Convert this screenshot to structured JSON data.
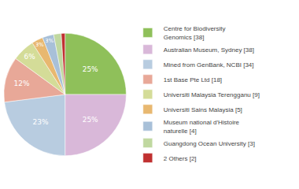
{
  "chart_data": {
    "type": "pie",
    "categories": [
      "Centre for Biodiversity\nGenomics [38]",
      "Australian Museum, Sydney [38]",
      "Mined from GenBank, NCBI [34]",
      "1st Base Pte Ltd [18]",
      "Universiti Malaysia Terengganu [9]",
      "Universiti Sains Malaysia [5]",
      "Museum national d'Histoire\nnaturelle [4]",
      "Guangdong Ocean University [3]",
      "2 Others [2]"
    ],
    "values": [
      25,
      25,
      23,
      12,
      6,
      3,
      3,
      2,
      1
    ],
    "value_labels": [
      "25%",
      "25%",
      "23%",
      "12%",
      "6%",
      "3%",
      "3%",
      null,
      null
    ],
    "colors": [
      "#8fc05a",
      "#d9b8d9",
      "#b8cce0",
      "#e8a898",
      "#d4dc98",
      "#e8b870",
      "#a8c0d8",
      "#c0d8a0",
      "#c03030"
    ],
    "data_labels": true,
    "legend": "right"
  }
}
